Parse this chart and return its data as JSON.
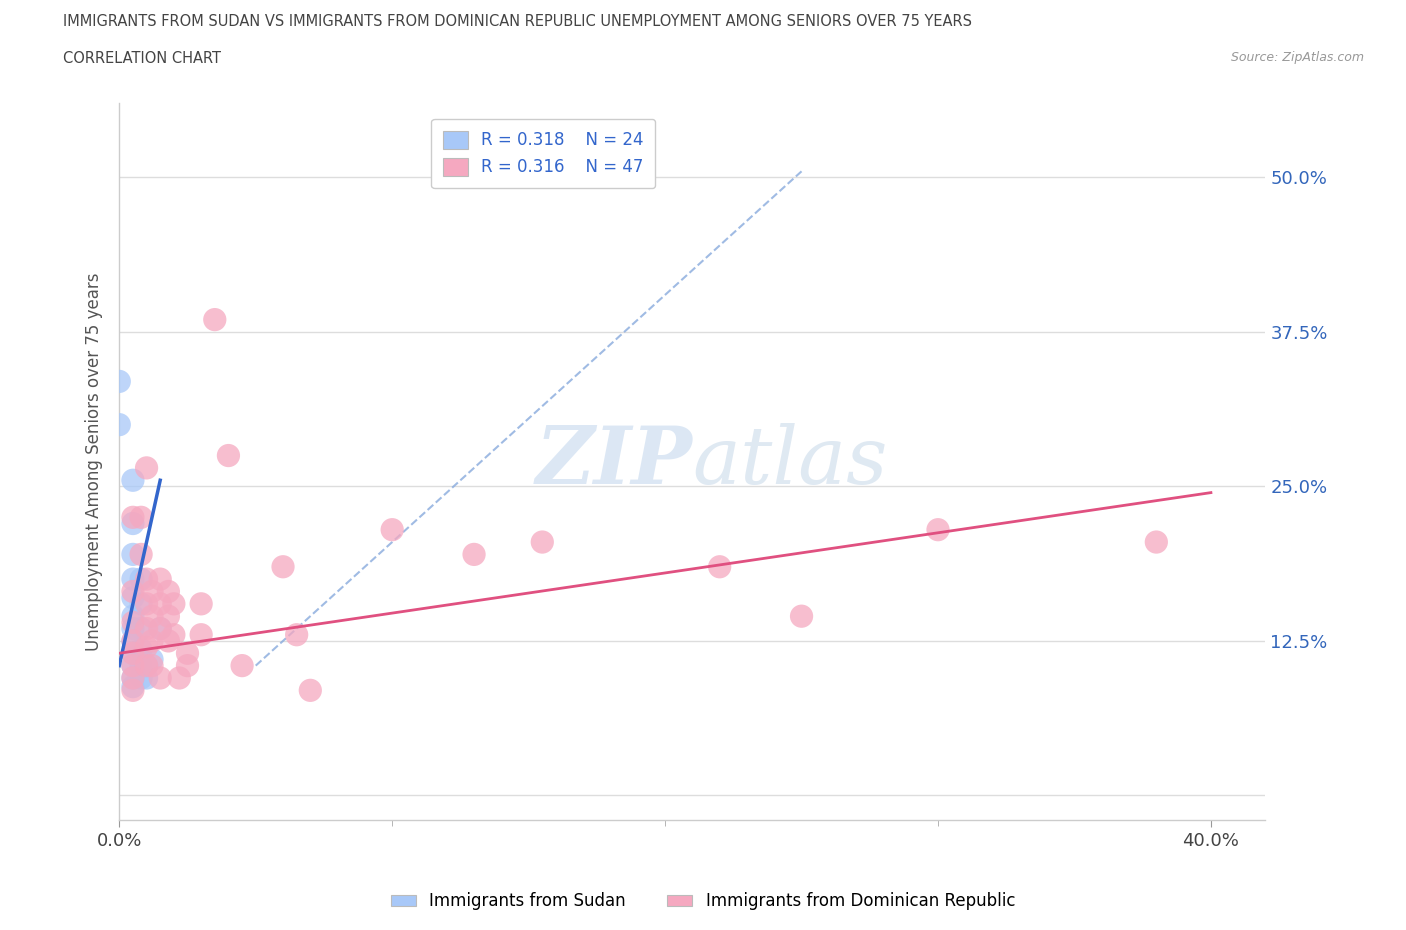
{
  "title_line1": "IMMIGRANTS FROM SUDAN VS IMMIGRANTS FROM DOMINICAN REPUBLIC UNEMPLOYMENT AMONG SENIORS OVER 75 YEARS",
  "title_line2": "CORRELATION CHART",
  "source": "Source: ZipAtlas.com",
  "ylabel": "Unemployment Among Seniors over 75 years",
  "watermark": "ZIPatlas",
  "legend_r1": "R = 0.318",
  "legend_n1": "N = 24",
  "legend_r2": "R = 0.316",
  "legend_n2": "N = 47",
  "yticks": [
    0.0,
    0.125,
    0.25,
    0.375,
    0.5
  ],
  "ytick_labels": [
    "",
    "12.5%",
    "25.0%",
    "37.5%",
    "50.0%"
  ],
  "xtick_labels": [
    "0.0%",
    "40.0%"
  ],
  "xlim": [
    0.0,
    0.42
  ],
  "ylim": [
    -0.02,
    0.56
  ],
  "color_sudan": "#a8c8f8",
  "color_dominican": "#f5a8c0",
  "trendline_sudan_color": "#3366cc",
  "trendline_dominican_color": "#e05080",
  "dashed_color": "#88aadd",
  "grid_color": "#dddddd",
  "background_color": "#ffffff",
  "sudan_points": [
    [
      0.0,
      0.335
    ],
    [
      0.0,
      0.3
    ],
    [
      0.005,
      0.255
    ],
    [
      0.005,
      0.22
    ],
    [
      0.005,
      0.195
    ],
    [
      0.005,
      0.175
    ],
    [
      0.005,
      0.16
    ],
    [
      0.005,
      0.145
    ],
    [
      0.005,
      0.135
    ],
    [
      0.005,
      0.125
    ],
    [
      0.005,
      0.115
    ],
    [
      0.005,
      0.105
    ],
    [
      0.005,
      0.095
    ],
    [
      0.005,
      0.088
    ],
    [
      0.008,
      0.175
    ],
    [
      0.008,
      0.155
    ],
    [
      0.008,
      0.135
    ],
    [
      0.008,
      0.118
    ],
    [
      0.008,
      0.105
    ],
    [
      0.008,
      0.095
    ],
    [
      0.01,
      0.105
    ],
    [
      0.01,
      0.095
    ],
    [
      0.012,
      0.11
    ],
    [
      0.015,
      0.135
    ]
  ],
  "dominican_points": [
    [
      0.005,
      0.225
    ],
    [
      0.005,
      0.165
    ],
    [
      0.005,
      0.14
    ],
    [
      0.005,
      0.125
    ],
    [
      0.005,
      0.115
    ],
    [
      0.005,
      0.105
    ],
    [
      0.005,
      0.095
    ],
    [
      0.005,
      0.085
    ],
    [
      0.008,
      0.225
    ],
    [
      0.008,
      0.195
    ],
    [
      0.01,
      0.265
    ],
    [
      0.01,
      0.175
    ],
    [
      0.01,
      0.155
    ],
    [
      0.01,
      0.135
    ],
    [
      0.01,
      0.12
    ],
    [
      0.01,
      0.105
    ],
    [
      0.012,
      0.165
    ],
    [
      0.012,
      0.145
    ],
    [
      0.012,
      0.125
    ],
    [
      0.012,
      0.105
    ],
    [
      0.015,
      0.175
    ],
    [
      0.015,
      0.155
    ],
    [
      0.015,
      0.135
    ],
    [
      0.015,
      0.095
    ],
    [
      0.018,
      0.165
    ],
    [
      0.018,
      0.145
    ],
    [
      0.018,
      0.125
    ],
    [
      0.02,
      0.155
    ],
    [
      0.02,
      0.13
    ],
    [
      0.022,
      0.095
    ],
    [
      0.025,
      0.115
    ],
    [
      0.025,
      0.105
    ],
    [
      0.03,
      0.155
    ],
    [
      0.03,
      0.13
    ],
    [
      0.035,
      0.385
    ],
    [
      0.04,
      0.275
    ],
    [
      0.045,
      0.105
    ],
    [
      0.06,
      0.185
    ],
    [
      0.065,
      0.13
    ],
    [
      0.07,
      0.085
    ],
    [
      0.1,
      0.215
    ],
    [
      0.13,
      0.195
    ],
    [
      0.155,
      0.205
    ],
    [
      0.22,
      0.185
    ],
    [
      0.25,
      0.145
    ],
    [
      0.3,
      0.215
    ],
    [
      0.38,
      0.205
    ]
  ],
  "sudan_trendline": [
    [
      0.0,
      0.105
    ],
    [
      0.015,
      0.255
    ]
  ],
  "dominican_trendline": [
    [
      0.0,
      0.115
    ],
    [
      0.4,
      0.245
    ]
  ],
  "dashed_line": [
    [
      0.05,
      0.105
    ],
    [
      0.25,
      0.505
    ]
  ]
}
